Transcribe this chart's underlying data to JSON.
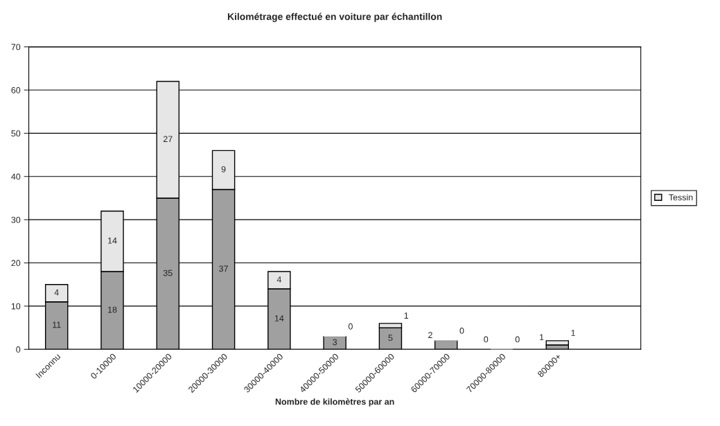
{
  "chart_data": {
    "type": "bar",
    "title": "Kilométrage effectué en voiture par échantillon",
    "xlabel": "Nombre de kilomètres par an",
    "categories": [
      "Inconnu",
      "0-10000",
      "10000-20000",
      "20000-30000",
      "30000-40000",
      "40000-50000",
      "50000-60000",
      "60000-70000",
      "70000-80000",
      "80000+",
      null
    ],
    "series": [
      {
        "color": "#a0a0a0",
        "values": [
          11,
          18,
          35,
          37,
          14,
          3,
          5,
          2,
          0,
          1,
          null
        ]
      },
      {
        "name": "Tessin",
        "color": "#e6e6e6",
        "values": [
          4,
          14,
          27,
          9,
          4,
          0,
          1,
          0,
          0,
          1,
          null
        ]
      }
    ],
    "stacked": true,
    "data_labels": true,
    "ylim": [
      0,
      70
    ],
    "yticks": [
      0,
      10,
      20,
      30,
      40,
      50,
      60,
      70
    ],
    "grid": "y",
    "legend": "right"
  }
}
